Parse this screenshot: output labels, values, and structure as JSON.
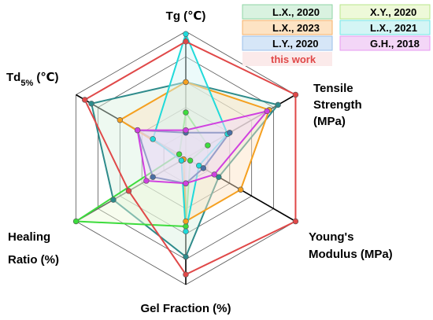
{
  "chart_data": {
    "type": "radar",
    "axes": [
      {
        "label": "Tg (℃)",
        "lines": [
          "Tg (℃)"
        ]
      },
      {
        "label": "Tensile Strength (MPa)",
        "lines": [
          "Tensile",
          "Strength",
          "(MPa)"
        ]
      },
      {
        "label": "Young's Modulus (MPa)",
        "lines": [
          "Young's",
          "Modulus (MPa)"
        ]
      },
      {
        "label": "Gel Fraction (%)",
        "lines": [
          "Gel Fraction (%)"
        ]
      },
      {
        "label": "Healing Ratio (%)",
        "lines": [
          "Healing",
          "Ratio (%)"
        ]
      },
      {
        "label": "Td5% (℃)",
        "lines": [
          "Td5% (℃)"
        ]
      }
    ],
    "rings": 5,
    "range": [
      0,
      5
    ],
    "grid": true,
    "legend": {
      "placement": "top-right",
      "columns": 2
    },
    "series": [
      {
        "name": "L.X., 2020",
        "color": "#2e8b8b",
        "fill": "#d9f2e0",
        "legend_fill": "#d9f2e0",
        "legend_border": "#8fd4a5",
        "values": [
          3.0,
          4.2,
          1.5,
          3.9,
          3.3,
          4.3
        ]
      },
      {
        "name": "X.Y., 2020",
        "color": "#3ddc3d",
        "fill": "#eef9d9",
        "legend_fill": "#eef9d9",
        "legend_border": "#b9e68c",
        "values": [
          1.8,
          1.0,
          0.2,
          2.7,
          5.0,
          0.3
        ]
      },
      {
        "name": "L.X., 2023",
        "color": "#f5a020",
        "fill": "#fde3c4",
        "legend_fill": "#fde3c4",
        "legend_border": "#f5b26a",
        "values": [
          3.0,
          3.8,
          2.5,
          2.5,
          0.1,
          3.0
        ]
      },
      {
        "name": "L.X., 2021",
        "color": "#20dada",
        "fill": "#d4f5f5",
        "legend_fill": "#d4f5f5",
        "legend_border": "#72e6e6",
        "values": [
          4.9,
          1.9,
          0.6,
          2.9,
          0.2,
          1.5
        ]
      },
      {
        "name": "L.Y., 2020",
        "color": "#4a6fa5",
        "fill": "#d6e6f7",
        "legend_fill": "#d6e6f7",
        "legend_border": "#9bbfe8",
        "values": [
          1.0,
          2.0,
          0.8,
          1.0,
          1.5,
          2.2
        ]
      },
      {
        "name": "G.H., 2018",
        "color": "#d040e0",
        "fill": "#f3d6f7",
        "legend_fill": "#f3d6f7",
        "legend_border": "#e79bf0",
        "values": [
          1.1,
          3.7,
          1.3,
          1.0,
          1.8,
          2.2
        ]
      },
      {
        "name": "this work",
        "color": "#e04848",
        "fill": "none",
        "legend_fill": "none",
        "legend_border": "none",
        "values": [
          4.6,
          5.0,
          5.0,
          4.6,
          2.6,
          4.6
        ]
      }
    ]
  }
}
